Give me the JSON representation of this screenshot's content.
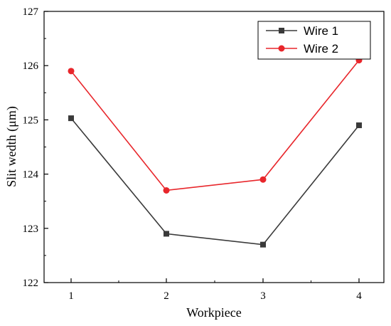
{
  "chart_data": {
    "type": "line",
    "xlabel": "Workpiece",
    "ylabel": "Slit wedth (μm)",
    "x": [
      1,
      2,
      3,
      4
    ],
    "xticks": [
      "1",
      "2",
      "3",
      "4"
    ],
    "ylim": [
      122,
      127
    ],
    "yticks": [
      "122",
      "123",
      "124",
      "125",
      "126",
      "127"
    ],
    "grid": false,
    "legend_position": "top-right",
    "series": [
      {
        "name": "Wire 1",
        "values": [
          125.03,
          122.9,
          122.7,
          124.9
        ],
        "color": "#3a3a3a",
        "marker": "square"
      },
      {
        "name": "Wire 2",
        "values": [
          125.9,
          123.7,
          123.9,
          126.1
        ],
        "color": "#e8262b",
        "marker": "circle"
      }
    ]
  }
}
